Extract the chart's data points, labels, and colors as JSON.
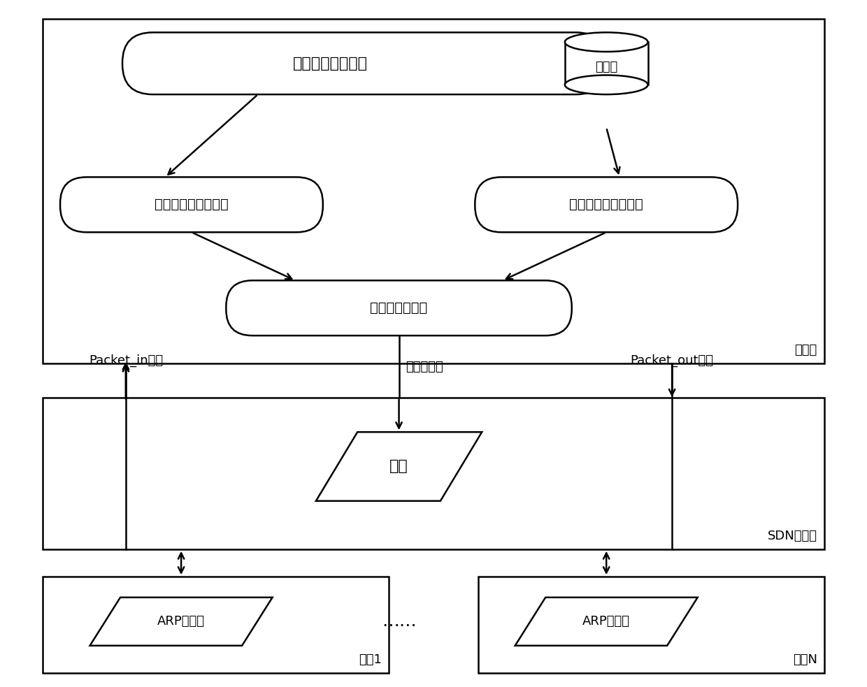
{
  "bg_color": "#ffffff",
  "labels": {
    "controller": "控制器",
    "sdn_switch": "SDN交换机",
    "host1": "主机1",
    "hostN": "主机N",
    "network_info": "网络信息维护模块",
    "database": "数据库",
    "realtime": "实时检测和防御模块",
    "scheduled": "定时监测和缓解模块",
    "flow_table_ctrl": "流表项控制模块",
    "flow_table": "流表",
    "arp1": "ARP缓存表",
    "arpN": "ARP缓存表",
    "packet_in": "Packet_in消息",
    "install_flow": "安装流表项",
    "packet_out": "Packet_out消息",
    "ellipsis": "……"
  },
  "font_size_large": 16,
  "font_size_medium": 14,
  "font_size_small": 13
}
